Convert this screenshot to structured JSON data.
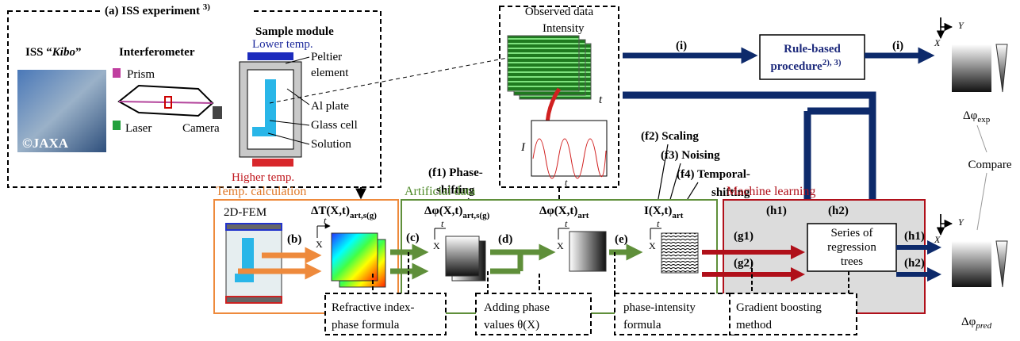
{
  "iss_experiment": {
    "title": "(a) ISS experiment",
    "title_ref": "3)",
    "kibo_prefix": "ISS “",
    "kibo_name": "Kibo",
    "kibo_suffix": "”",
    "interferometer": "Interferometer",
    "sample_module": "Sample module",
    "lower_temp": "Lower temp.",
    "higher_temp": "Higher temp.",
    "peltier_1": "Peltier",
    "peltier_2": "element",
    "al_plate": "Al plate",
    "glass_cell": "Glass cell",
    "solution": "Solution",
    "prism": "Prism",
    "laser": "Laser",
    "camera": "Camera",
    "copyright": "©JAXA"
  },
  "observed": {
    "title": "Observed data",
    "intensity": "Intensity",
    "t": "t",
    "i": "I"
  },
  "axis": {
    "t": "t",
    "x": "X",
    "y": "Y"
  },
  "rule_based": {
    "arrow_in": "(i)",
    "arrow_out": "(i)",
    "line1": "Rule-based",
    "line2": "procedure",
    "ref": "2), 3)"
  },
  "outputs": {
    "exp_main": "Δφ",
    "exp_sub": "exp",
    "pred_main": "Δφ",
    "pred_sub": "pred",
    "compare": "Compare"
  },
  "augment": {
    "f1_a": "(f1) Phase-",
    "f1_b": "shifting",
    "f2": "(f2) Scaling",
    "f3": "(f3) Noising",
    "f4_a": "(f4) Temporal-",
    "f4_b": "shifting"
  },
  "temp_calc": {
    "title": "Temp. calculation",
    "fem": "2D-FEM",
    "b": "(b)",
    "dt_main": "ΔT(X,t)",
    "dt_sub": "art,s(g)"
  },
  "artificial": {
    "title": "Artificial data",
    "c": "(c)",
    "d": "(d)",
    "e": "(e)",
    "phi_s_main": "Δφ(X,t)",
    "phi_s_sub": "art,s(g)",
    "phi_main": "Δφ(X,t)",
    "phi_sub": "art",
    "i_main": "I(X,t)",
    "i_sub": "art"
  },
  "ml": {
    "title": "Machine learning",
    "h1": "(h1)",
    "h2": "(h2)",
    "g1": "(g1)",
    "g2": "(g2)",
    "trees_1": "Series of",
    "trees_2": "regression",
    "trees_3": "trees",
    "out_h1": "(h1)",
    "out_h2": "(h2)"
  },
  "notes": {
    "refractive_1": "Refractive index-",
    "refractive_2": "phase formula",
    "adding_1": "Adding phase",
    "adding_2": "values θ(X)",
    "intensity_1": "phase-intensity",
    "intensity_2": "formula",
    "gbm_1": "Gradient boosting",
    "gbm_2": "method"
  }
}
